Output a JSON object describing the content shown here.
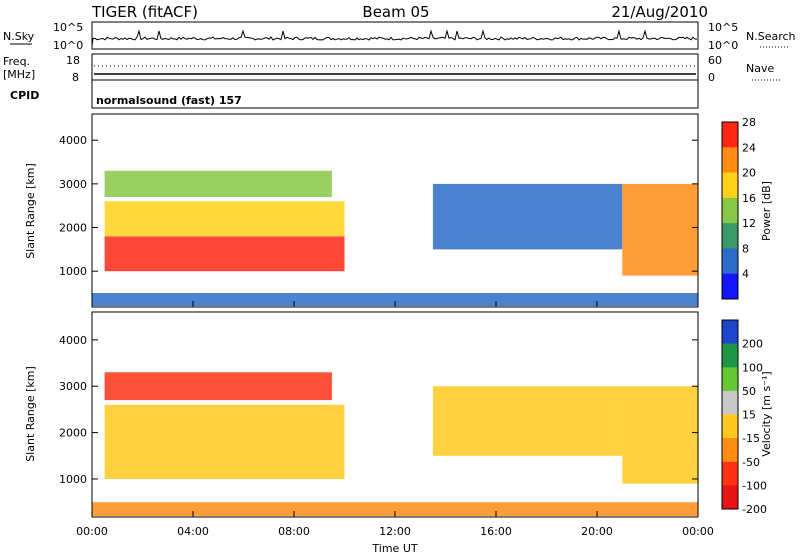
{
  "header": {
    "radar": "TIGER (fitACF)",
    "beam": "Beam 05",
    "date": "21/Aug/2010"
  },
  "top_panels": {
    "nsky_label": "N.Sky",
    "nsky_ticks": [
      "10^5",
      "10^0"
    ],
    "nsearch_label": "N.Search",
    "nsearch_ticks": [
      "10^5",
      "10^0"
    ],
    "freq_label": "Freq.",
    "freq_unit": "[MHz]",
    "freq_ticks": [
      "18",
      "8"
    ],
    "nave_label": "Nave",
    "nave_ticks": [
      "60",
      "0"
    ],
    "cpid_label": "CPID",
    "cpid_text": "normalsound (fast) 157"
  },
  "chart_data": [
    {
      "type": "heatmap",
      "panel": "power",
      "ylabel": "Slant Range [km]",
      "xlabel": "",
      "ylim": [
        180,
        4600
      ],
      "yticks": [
        "1000",
        "2000",
        "3000",
        "4000"
      ],
      "xticks": [],
      "colorbar": {
        "label": "Power [dB]",
        "ticks": [
          "4",
          "8",
          "12",
          "16",
          "20",
          "24",
          "28"
        ],
        "colors": [
          "#1414ff",
          "#2c6cc8",
          "#3c9a6a",
          "#88c846",
          "#ffd21a",
          "#ff8c14",
          "#ff2814"
        ]
      },
      "regions": [
        {
          "t": [
            0.5,
            10.0
          ],
          "r": [
            1000,
            1800
          ],
          "level": 28
        },
        {
          "t": [
            0.5,
            10.0
          ],
          "r": [
            1800,
            2600
          ],
          "level": 20
        },
        {
          "t": [
            0.5,
            9.5
          ],
          "r": [
            2700,
            3300
          ],
          "level": 16
        },
        {
          "t": [
            13.5,
            21.0
          ],
          "r": [
            1500,
            3000
          ],
          "level": 8
        },
        {
          "t": [
            21.0,
            24.0
          ],
          "r": [
            900,
            3000
          ],
          "level": 24
        },
        {
          "t": [
            0.0,
            24.0
          ],
          "r": [
            200,
            500
          ],
          "level": 8
        }
      ]
    },
    {
      "type": "heatmap",
      "panel": "velocity",
      "ylabel": "Slant Range [km]",
      "xlabel": "Time UT",
      "ylim": [
        180,
        4600
      ],
      "yticks": [
        "1000",
        "2000",
        "3000",
        "4000"
      ],
      "xticks": [
        "00:00",
        "04:00",
        "08:00",
        "12:00",
        "16:00",
        "20:00",
        "00:00"
      ],
      "colorbar": {
        "label": "Velocity [m s⁻¹]",
        "ticks": [
          "200",
          "100",
          "50",
          "15",
          "-15",
          "-50",
          "-100",
          "-200"
        ],
        "colors": [
          "#1e46c8",
          "#1e9646",
          "#64c832",
          "#c8c8c8",
          "#ffc81e",
          "#ff8c14",
          "#ff3214",
          "#e61414"
        ]
      },
      "regions": [
        {
          "t": [
            0.5,
            10.0
          ],
          "r": [
            1000,
            2600
          ],
          "level": 0
        },
        {
          "t": [
            0.5,
            9.5
          ],
          "r": [
            2700,
            3300
          ],
          "level": -100
        },
        {
          "t": [
            13.5,
            21.0
          ],
          "r": [
            1500,
            3000
          ],
          "level": 0
        },
        {
          "t": [
            21.0,
            24.0
          ],
          "r": [
            900,
            3000
          ],
          "level": 0
        },
        {
          "t": [
            0.0,
            24.0
          ],
          "r": [
            200,
            500
          ],
          "level": -30
        }
      ]
    }
  ]
}
